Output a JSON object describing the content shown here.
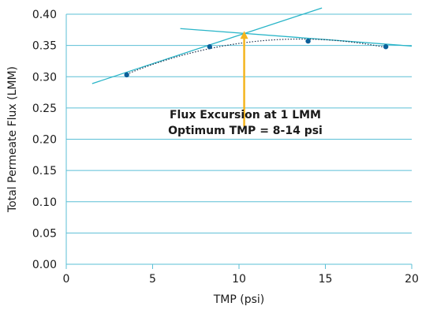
{
  "chart_data": {
    "type": "scatter",
    "title": "",
    "xlabel": "TMP (psi)",
    "ylabel": "Total Permeate Flux (LMM)",
    "xlim": [
      0,
      20
    ],
    "ylim": [
      0,
      0.4
    ],
    "xticks": [
      0,
      5,
      10,
      15,
      20
    ],
    "yticks": [
      0.0,
      0.05,
      0.1,
      0.15,
      0.2,
      0.25,
      0.3,
      0.35,
      0.4
    ],
    "xtick_labels": [
      "0",
      "5",
      "10",
      "15",
      "20"
    ],
    "ytick_labels": [
      "0.00",
      "0.05",
      "0.10",
      "0.15",
      "0.20",
      "0.25",
      "0.30",
      "0.35",
      "0.40"
    ],
    "grid": "horizontal",
    "series": [
      {
        "x": [
          3.5,
          8.3,
          14.0,
          18.5
        ],
        "y": [
          0.303,
          0.348,
          0.357,
          0.348
        ],
        "color": "#0b5f99",
        "trendline": "polynomial",
        "trend_color": "#1a2e4a"
      }
    ],
    "tangent_lines": [
      {
        "x": [
          1.5,
          14.8
        ],
        "y": [
          0.289,
          0.41
        ],
        "color": "#29b5c8"
      },
      {
        "x": [
          6.6,
          20.0
        ],
        "y": [
          0.377,
          0.349
        ],
        "color": "#29b5c8"
      }
    ],
    "arrow": {
      "x": 10.3,
      "y_from": 0.22,
      "y_to": 0.372,
      "color": "#f4b51e"
    },
    "annotation": {
      "line1": "Flux Excursion at 1 LMM",
      "line2": "Optimum TMP = 8-14 psi"
    },
    "colors": {
      "grid": "#5bbfd6",
      "axis": "#5bbfd6"
    }
  }
}
